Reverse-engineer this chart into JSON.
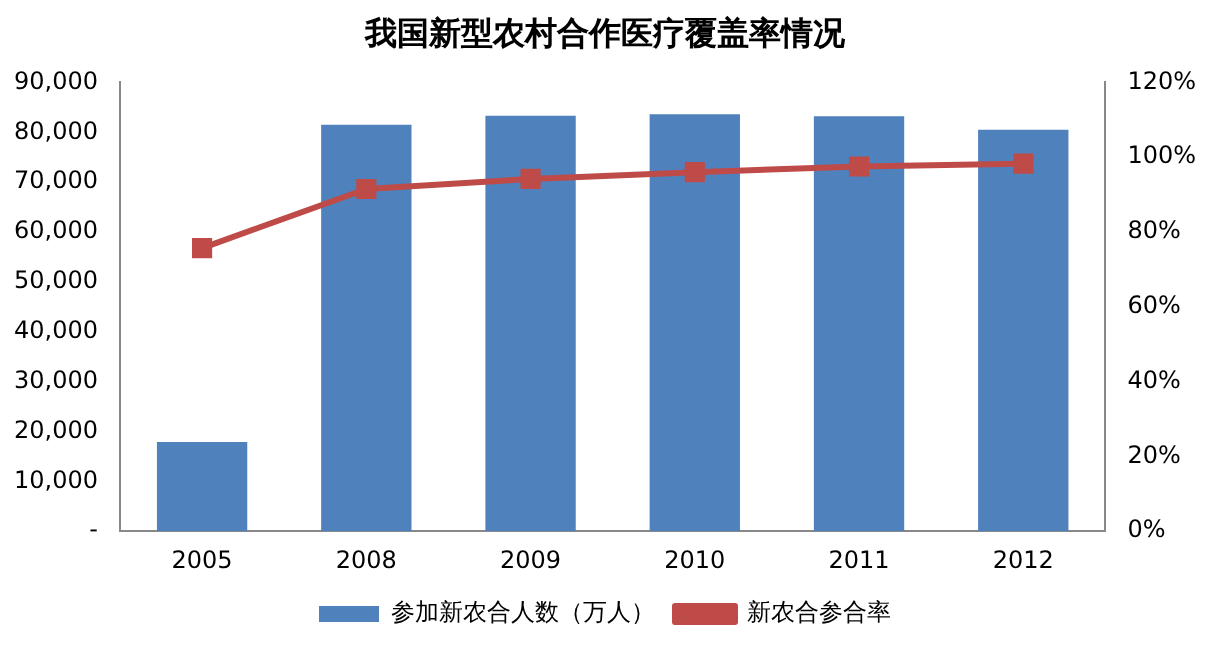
{
  "chart_data": {
    "type": "bar",
    "title": "我国新型农村合作医疗覆盖率情况",
    "categories": [
      "2005",
      "2008",
      "2009",
      "2010",
      "2011",
      "2012"
    ],
    "series": [
      {
        "name": "参加新农合人数（万人）",
        "color": "#4f81bd",
        "values": [
          17900,
          81500,
          83300,
          83600,
          83200,
          80500
        ]
      },
      {
        "name": "新农合参合率",
        "type": "line",
        "axis": "y2",
        "color": "#be4b48",
        "marker": "square",
        "values": [
          75.7,
          91.5,
          94.2,
          96,
          97.5,
          98.3
        ]
      }
    ],
    "ylim": [
      0,
      90000
    ],
    "yticks": [
      {
        "value": 0,
        "label": "-"
      },
      {
        "value": 10000,
        "label": "10,000"
      },
      {
        "value": 20000,
        "label": "20,000"
      },
      {
        "value": 30000,
        "label": "30,000"
      },
      {
        "value": 40000,
        "label": "40,000"
      },
      {
        "value": 50000,
        "label": "50,000"
      },
      {
        "value": 60000,
        "label": "60,000"
      },
      {
        "value": 70000,
        "label": "70,000"
      },
      {
        "value": 80000,
        "label": "80,000"
      },
      {
        "value": 90000,
        "label": "90,000"
      }
    ],
    "y2lim": [
      0,
      120
    ],
    "y2ticks": [
      {
        "value": 0,
        "label": "0%"
      },
      {
        "value": 20,
        "label": "20%"
      },
      {
        "value": 40,
        "label": "40%"
      },
      {
        "value": 60,
        "label": "60%"
      },
      {
        "value": 80,
        "label": "80%"
      },
      {
        "value": 100,
        "label": "100%"
      },
      {
        "value": 120,
        "label": "120%"
      }
    ],
    "grid": false,
    "legend": "bottom"
  }
}
